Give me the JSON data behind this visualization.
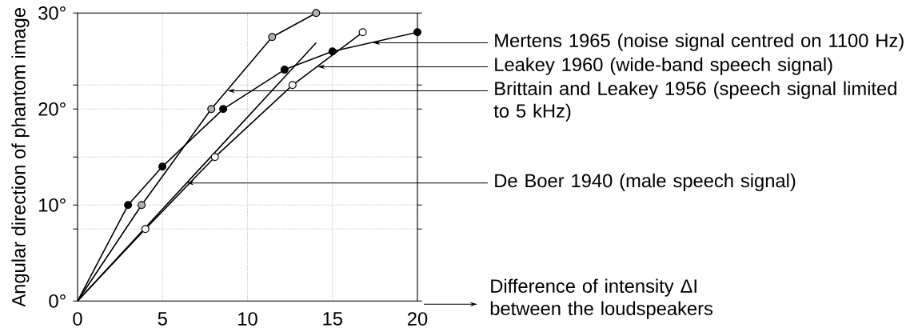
{
  "chart_data": {
    "type": "line",
    "ylabel": "Angular direction of phantom image",
    "xlim": [
      0,
      20
    ],
    "ylim": [
      0,
      30
    ],
    "xticks": [
      0,
      5,
      10,
      15,
      20
    ],
    "yticks": [
      {
        "value": 0,
        "label": "0°"
      },
      {
        "value": 7.5,
        "label": null
      },
      {
        "value": 10,
        "label": "10°"
      },
      {
        "value": 15,
        "label": null
      },
      {
        "value": 20,
        "label": "20°"
      },
      {
        "value": 22.5,
        "label": null
      },
      {
        "value": 30,
        "label": "30°"
      }
    ],
    "grid": true,
    "series": [
      {
        "x": [
          0,
          2.97,
          4.99,
          8.57,
          12.18,
          15,
          20
        ],
        "values": [
          0,
          10,
          14,
          20,
          24.1,
          26,
          28
        ],
        "color": "#000000",
        "marker": "circle"
      },
      {
        "x": [
          0,
          3.77,
          7.87,
          11.45,
          14.04
        ],
        "values": [
          0,
          10,
          20,
          27.5,
          30
        ],
        "color": "#b0b0b0",
        "marker": "circle"
      },
      {
        "x": [
          0,
          14.04
        ],
        "values": [
          0,
          26.9
        ],
        "color": "#000000",
        "marker": "none"
      },
      {
        "x": [
          0,
          3.99,
          8.08,
          12.65,
          16.78
        ],
        "values": [
          0,
          7.5,
          15,
          22.5,
          28
        ],
        "color": "#ffffff",
        "marker": "circle"
      }
    ],
    "annotations": [
      {
        "text": "Mertens 1965 (noise signal centred on 1100 Hz)",
        "x": 17.37,
        "y": 26.9
      },
      {
        "text": "Leakey 1960 (wide-band speech signal)",
        "x": 14.12,
        "y": 24.4
      },
      {
        "text": "Brittain and Leakey 1956 (speech signal limited to 5 kHz)",
        "x": 8.82,
        "y": 21.9
      },
      {
        "text": "De Boer 1940 (male speech signal)",
        "x": 6.4,
        "y": 12.3
      },
      "Difference of intensity ΔI between the loudspeakers"
    ]
  }
}
